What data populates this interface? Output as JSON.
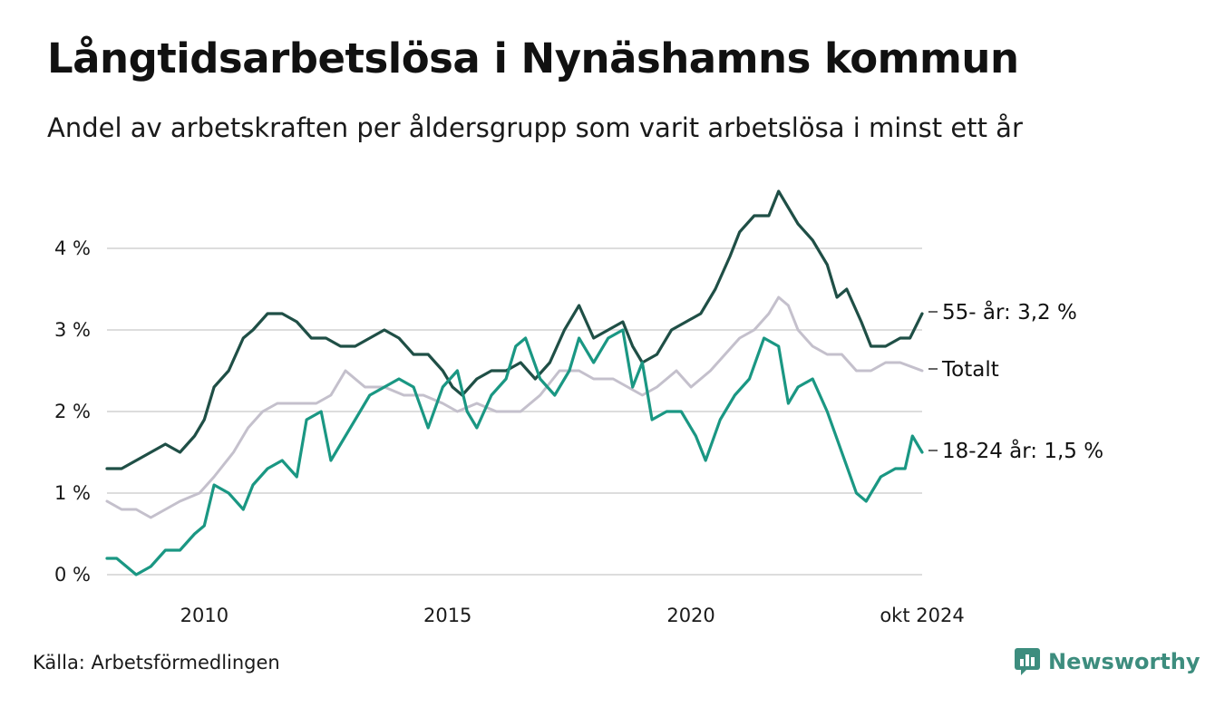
{
  "title": "Långtidsarbetslösa i Nynäshamns kommun",
  "subtitle": "Andel av arbetskraften per åldersgrupp som varit arbetslösa i minst ett år",
  "source": "Källa: Arbetsförmedlingen",
  "brand": "Newsworthy",
  "colors": {
    "s55": "#1f4f46",
    "total": "#c4c0cc",
    "s1824": "#1a9783",
    "grid": "#dddddd",
    "brand": "#3d8d7e"
  },
  "chart_data": {
    "type": "line",
    "x_unit": "year",
    "xlim": [
      2008.0,
      2024.75
    ],
    "ylim": [
      0,
      4.8
    ],
    "yticks": [
      0,
      1,
      2,
      3,
      4
    ],
    "ytick_labels": [
      "0 %",
      "1 %",
      "2 %",
      "3 %",
      "4 %"
    ],
    "xticks": [
      2010,
      2015,
      2020,
      2024.75
    ],
    "xtick_labels": [
      "2010",
      "2015",
      "2020",
      "okt 2024"
    ],
    "series": [
      {
        "key": "total",
        "name": "Totalt",
        "end_label": "Totalt",
        "points": [
          [
            2008.0,
            0.9
          ],
          [
            2008.3,
            0.8
          ],
          [
            2008.6,
            0.8
          ],
          [
            2008.9,
            0.7
          ],
          [
            2009.2,
            0.8
          ],
          [
            2009.5,
            0.9
          ],
          [
            2009.9,
            1.0
          ],
          [
            2010.2,
            1.2
          ],
          [
            2010.6,
            1.5
          ],
          [
            2010.9,
            1.8
          ],
          [
            2011.2,
            2.0
          ],
          [
            2011.5,
            2.1
          ],
          [
            2011.9,
            2.1
          ],
          [
            2012.3,
            2.1
          ],
          [
            2012.6,
            2.2
          ],
          [
            2012.9,
            2.5
          ],
          [
            2013.3,
            2.3
          ],
          [
            2013.7,
            2.3
          ],
          [
            2014.1,
            2.2
          ],
          [
            2014.5,
            2.2
          ],
          [
            2014.9,
            2.1
          ],
          [
            2015.2,
            2.0
          ],
          [
            2015.6,
            2.1
          ],
          [
            2016.0,
            2.0
          ],
          [
            2016.5,
            2.0
          ],
          [
            2016.9,
            2.2
          ],
          [
            2017.3,
            2.5
          ],
          [
            2017.7,
            2.5
          ],
          [
            2018.0,
            2.4
          ],
          [
            2018.4,
            2.4
          ],
          [
            2018.7,
            2.3
          ],
          [
            2019.0,
            2.2
          ],
          [
            2019.3,
            2.3
          ],
          [
            2019.7,
            2.5
          ],
          [
            2020.0,
            2.3
          ],
          [
            2020.4,
            2.5
          ],
          [
            2020.7,
            2.7
          ],
          [
            2021.0,
            2.9
          ],
          [
            2021.3,
            3.0
          ],
          [
            2021.6,
            3.2
          ],
          [
            2021.8,
            3.4
          ],
          [
            2022.0,
            3.3
          ],
          [
            2022.2,
            3.0
          ],
          [
            2022.5,
            2.8
          ],
          [
            2022.8,
            2.7
          ],
          [
            2023.1,
            2.7
          ],
          [
            2023.4,
            2.5
          ],
          [
            2023.7,
            2.5
          ],
          [
            2024.0,
            2.6
          ],
          [
            2024.3,
            2.6
          ],
          [
            2024.75,
            2.5
          ]
        ]
      },
      {
        "key": "s55",
        "name": "55- år",
        "end_label": "55- år: 3,2 %",
        "points": [
          [
            2008.0,
            1.3
          ],
          [
            2008.3,
            1.3
          ],
          [
            2008.6,
            1.4
          ],
          [
            2008.9,
            1.5
          ],
          [
            2009.2,
            1.6
          ],
          [
            2009.5,
            1.5
          ],
          [
            2009.8,
            1.7
          ],
          [
            2010.0,
            1.9
          ],
          [
            2010.2,
            2.3
          ],
          [
            2010.5,
            2.5
          ],
          [
            2010.8,
            2.9
          ],
          [
            2011.0,
            3.0
          ],
          [
            2011.3,
            3.2
          ],
          [
            2011.6,
            3.2
          ],
          [
            2011.9,
            3.1
          ],
          [
            2012.2,
            2.9
          ],
          [
            2012.5,
            2.9
          ],
          [
            2012.8,
            2.8
          ],
          [
            2013.1,
            2.8
          ],
          [
            2013.4,
            2.9
          ],
          [
            2013.7,
            3.0
          ],
          [
            2014.0,
            2.9
          ],
          [
            2014.3,
            2.7
          ],
          [
            2014.6,
            2.7
          ],
          [
            2014.9,
            2.5
          ],
          [
            2015.1,
            2.3
          ],
          [
            2015.3,
            2.2
          ],
          [
            2015.6,
            2.4
          ],
          [
            2015.9,
            2.5
          ],
          [
            2016.2,
            2.5
          ],
          [
            2016.5,
            2.6
          ],
          [
            2016.8,
            2.4
          ],
          [
            2017.1,
            2.6
          ],
          [
            2017.4,
            3.0
          ],
          [
            2017.7,
            3.3
          ],
          [
            2018.0,
            2.9
          ],
          [
            2018.3,
            3.0
          ],
          [
            2018.6,
            3.1
          ],
          [
            2018.8,
            2.8
          ],
          [
            2019.0,
            2.6
          ],
          [
            2019.3,
            2.7
          ],
          [
            2019.6,
            3.0
          ],
          [
            2019.9,
            3.1
          ],
          [
            2020.2,
            3.2
          ],
          [
            2020.5,
            3.5
          ],
          [
            2020.8,
            3.9
          ],
          [
            2021.0,
            4.2
          ],
          [
            2021.3,
            4.4
          ],
          [
            2021.6,
            4.4
          ],
          [
            2021.8,
            4.7
          ],
          [
            2022.0,
            4.5
          ],
          [
            2022.2,
            4.3
          ],
          [
            2022.5,
            4.1
          ],
          [
            2022.8,
            3.8
          ],
          [
            2023.0,
            3.4
          ],
          [
            2023.2,
            3.5
          ],
          [
            2023.5,
            3.1
          ],
          [
            2023.7,
            2.8
          ],
          [
            2024.0,
            2.8
          ],
          [
            2024.3,
            2.9
          ],
          [
            2024.5,
            2.9
          ],
          [
            2024.75,
            3.2
          ]
        ]
      },
      {
        "key": "s1824",
        "name": "18-24 år",
        "end_label": "18-24 år: 1,5 %",
        "points": [
          [
            2008.0,
            0.2
          ],
          [
            2008.2,
            0.2
          ],
          [
            2008.4,
            0.1
          ],
          [
            2008.6,
            0.0
          ],
          [
            2008.9,
            0.1
          ],
          [
            2009.2,
            0.3
          ],
          [
            2009.5,
            0.3
          ],
          [
            2009.8,
            0.5
          ],
          [
            2010.0,
            0.6
          ],
          [
            2010.2,
            1.1
          ],
          [
            2010.5,
            1.0
          ],
          [
            2010.8,
            0.8
          ],
          [
            2011.0,
            1.1
          ],
          [
            2011.3,
            1.3
          ],
          [
            2011.6,
            1.4
          ],
          [
            2011.9,
            1.2
          ],
          [
            2012.1,
            1.9
          ],
          [
            2012.4,
            2.0
          ],
          [
            2012.6,
            1.4
          ],
          [
            2012.9,
            1.7
          ],
          [
            2013.2,
            2.0
          ],
          [
            2013.4,
            2.2
          ],
          [
            2013.7,
            2.3
          ],
          [
            2014.0,
            2.4
          ],
          [
            2014.3,
            2.3
          ],
          [
            2014.6,
            1.8
          ],
          [
            2014.9,
            2.3
          ],
          [
            2015.2,
            2.5
          ],
          [
            2015.4,
            2.0
          ],
          [
            2015.6,
            1.8
          ],
          [
            2015.9,
            2.2
          ],
          [
            2016.2,
            2.4
          ],
          [
            2016.4,
            2.8
          ],
          [
            2016.6,
            2.9
          ],
          [
            2016.9,
            2.4
          ],
          [
            2017.2,
            2.2
          ],
          [
            2017.5,
            2.5
          ],
          [
            2017.7,
            2.9
          ],
          [
            2018.0,
            2.6
          ],
          [
            2018.3,
            2.9
          ],
          [
            2018.6,
            3.0
          ],
          [
            2018.8,
            2.3
          ],
          [
            2019.0,
            2.6
          ],
          [
            2019.2,
            1.9
          ],
          [
            2019.5,
            2.0
          ],
          [
            2019.8,
            2.0
          ],
          [
            2020.1,
            1.7
          ],
          [
            2020.3,
            1.4
          ],
          [
            2020.6,
            1.9
          ],
          [
            2020.9,
            2.2
          ],
          [
            2021.2,
            2.4
          ],
          [
            2021.5,
            2.9
          ],
          [
            2021.8,
            2.8
          ],
          [
            2022.0,
            2.1
          ],
          [
            2022.2,
            2.3
          ],
          [
            2022.5,
            2.4
          ],
          [
            2022.8,
            2.0
          ],
          [
            2023.1,
            1.5
          ],
          [
            2023.4,
            1.0
          ],
          [
            2023.6,
            0.9
          ],
          [
            2023.9,
            1.2
          ],
          [
            2024.2,
            1.3
          ],
          [
            2024.4,
            1.3
          ],
          [
            2024.55,
            1.7
          ],
          [
            2024.75,
            1.5
          ]
        ]
      }
    ]
  }
}
